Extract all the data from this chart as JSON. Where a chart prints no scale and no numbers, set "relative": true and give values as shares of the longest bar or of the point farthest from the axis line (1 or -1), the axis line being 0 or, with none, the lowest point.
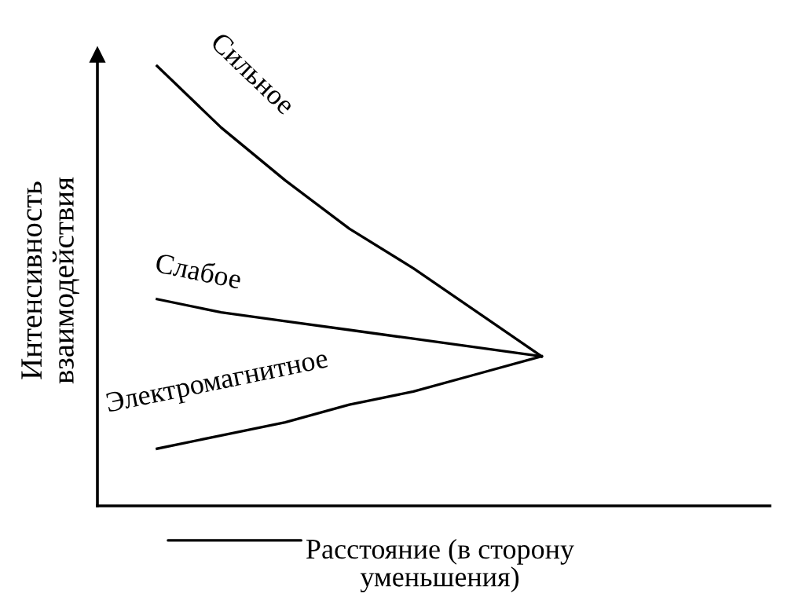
{
  "chart_data": {
    "type": "line",
    "relative": true,
    "xlabel": "Расстояние (в сторону\nуменьшения)",
    "ylabel": "Интенсивность\nвзаимодействия",
    "categories": [
      null,
      null,
      null,
      null,
      null,
      null,
      null
    ],
    "series": [
      {
        "name": "Сильное",
        "color": "#000000",
        "values": [
          1,
          0.86,
          0.74,
          0.63,
          0.54,
          0.44,
          0.34
        ]
      },
      {
        "name": "Слабое",
        "color": "#000000",
        "values": [
          0.47,
          0.44,
          0.42,
          0.4,
          0.38,
          0.36,
          0.34
        ]
      },
      {
        "name": "Электромагнитное",
        "color": "#000000",
        "values": [
          0.13,
          0.16,
          0.19,
          0.23,
          0.26,
          0.3,
          0.34
        ]
      }
    ],
    "marker": "none",
    "line_style": "solid"
  }
}
